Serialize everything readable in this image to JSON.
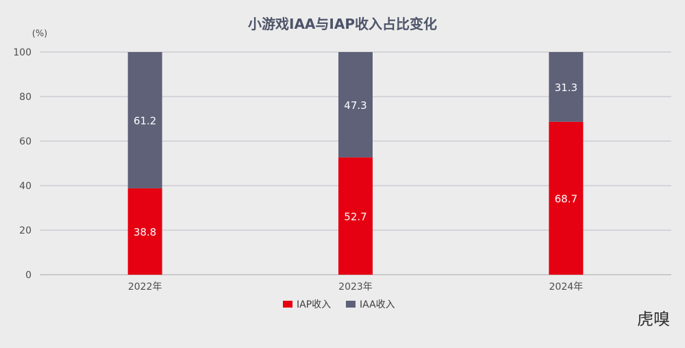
{
  "chart_data": {
    "type": "bar",
    "stacked": true,
    "title": "小游戏IAA与IAP收入占比变化",
    "unit_label": "(%)",
    "categories": [
      "2022年",
      "2023年",
      "2024年"
    ],
    "series": [
      {
        "name": "IAP收入",
        "color": "#e50012",
        "values": [
          38.8,
          52.7,
          68.7
        ]
      },
      {
        "name": "IAA收入",
        "color": "#5e6178",
        "values": [
          61.2,
          47.3,
          31.3
        ]
      }
    ],
    "yticks": [
      0,
      20,
      40,
      60,
      80,
      100
    ],
    "ylim": [
      0,
      100
    ],
    "grid": true,
    "legend": "bottom-center"
  },
  "watermark": "虎嗅"
}
